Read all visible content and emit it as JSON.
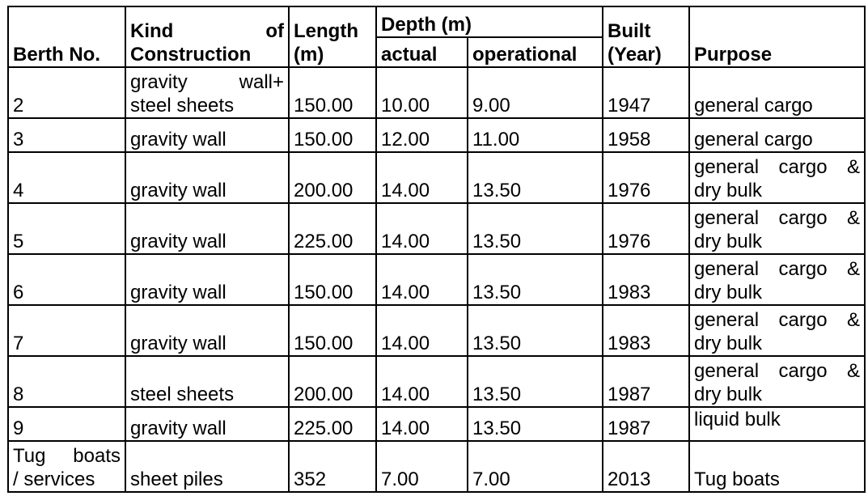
{
  "table": {
    "headers": {
      "berth_no": "Berth No.",
      "kind_line1_left": "Kind",
      "kind_line1_right": "of",
      "kind_line2": "Construction",
      "length_line1": "Length",
      "length_line2": "(m)",
      "depth": "Depth (m)",
      "depth_actual": "actual",
      "depth_operational": "operational",
      "built_line1": "Built",
      "built_line2": "(Year)",
      "purpose": "Purpose"
    },
    "rows": [
      {
        "berth": "2",
        "kind_line1_left": "gravity",
        "kind_line1_right": "wall+",
        "kind_line2": "steel sheets",
        "length": "150.00",
        "actual": "10.00",
        "operational": "9.00",
        "built": "1947",
        "purpose": "general cargo"
      },
      {
        "berth": "3",
        "kind": "gravity wall",
        "length": "150.00",
        "actual": "12.00",
        "operational": "11.00",
        "built": "1958",
        "purpose": "general cargo"
      },
      {
        "berth": "4",
        "kind": "gravity wall",
        "length": "200.00",
        "actual": "14.00",
        "operational": "13.50",
        "built": "1976",
        "purpose_line1_a": "general",
        "purpose_line1_b": "cargo",
        "purpose_line1_c": "&",
        "purpose_line2": "dry bulk"
      },
      {
        "berth": "5",
        "kind": "gravity wall",
        "length": "225.00",
        "actual": "14.00",
        "operational": "13.50",
        "built": "1976",
        "purpose_line1_a": "general",
        "purpose_line1_b": "cargo",
        "purpose_line1_c": "&",
        "purpose_line2": "dry bulk"
      },
      {
        "berth": "6",
        "kind": "gravity wall",
        "length": "150.00",
        "actual": "14.00",
        "operational": "13.50",
        "built": "1983",
        "purpose_line1_a": "general",
        "purpose_line1_b": "cargo",
        "purpose_line1_c": "&",
        "purpose_line2": "dry bulk"
      },
      {
        "berth": "7",
        "kind": "gravity wall",
        "length": "150.00",
        "actual": "14.00",
        "operational": "13.50",
        "built": "1983",
        "purpose_line1_a": "general",
        "purpose_line1_b": "cargo",
        "purpose_line1_c": "&",
        "purpose_line2": "dry bulk"
      },
      {
        "berth": "8",
        "kind": "steel sheets",
        "length": "200.00",
        "actual": "14.00",
        "operational": "13.50",
        "built": "1987",
        "purpose_line1_a": "general",
        "purpose_line1_b": "cargo",
        "purpose_line1_c": "&",
        "purpose_line2": "dry bulk"
      },
      {
        "berth": "9",
        "kind": "gravity wall",
        "length": "225.00",
        "actual": "14.00",
        "operational": "13.50",
        "built": "1987",
        "purpose": "liquid bulk"
      },
      {
        "berth_line1_a": "Tug",
        "berth_line1_b": "boats",
        "berth_line2": "/ services",
        "kind": "sheet piles",
        "length": "352",
        "actual": "7.00",
        "operational": "7.00",
        "built": "2013",
        "purpose": "Tug boats"
      }
    ]
  }
}
